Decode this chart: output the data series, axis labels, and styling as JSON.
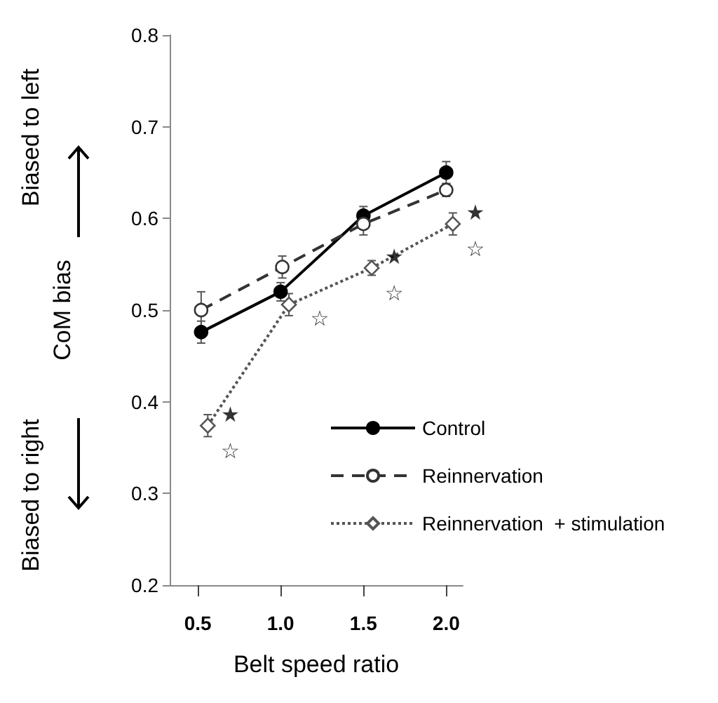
{
  "chart_data": {
    "type": "line",
    "xlabel": "Belt speed ratio",
    "ylabel": "CoM bias",
    "xlim": [
      0.33,
      2.1
    ],
    "xticks": [
      0.5,
      {
        "value": 1,
        "label": "1.0"
      },
      1.5,
      {
        "value": 2,
        "label": "2.0"
      }
    ],
    "ylim": [
      0.2,
      0.8
    ],
    "yticks": [
      0.2,
      0.3,
      0.4,
      0.5,
      0.6,
      0.7,
      0.8
    ],
    "grid": false,
    "legend": "bottom right",
    "series": [
      {
        "name": "Control",
        "color": "#000000",
        "marker": "circle",
        "line_style": "solid",
        "x": [
          0.52,
          1.0,
          1.5,
          2.0
        ],
        "values": [
          0.476,
          0.52,
          0.603,
          0.65
        ],
        "errors": [
          0.012,
          0.01,
          0.01,
          0.012
        ]
      },
      {
        "name": "Reinnervation",
        "color": "#333333",
        "marker": "circle",
        "line_style": "dashed",
        "x": [
          0.52,
          1.01,
          1.5,
          2.0
        ],
        "values": [
          0.5,
          0.547,
          0.594,
          0.631
        ],
        "errors": [
          0.02,
          0.012,
          0.012,
          0.007
        ]
      },
      {
        "name": "Reinnervation  + stimulation",
        "color": "#555555",
        "marker": "diamond",
        "line_style": "dotted",
        "x": [
          0.56,
          1.05,
          1.55,
          2.04
        ],
        "values": [
          0.374,
          0.506,
          0.546,
          0.594
        ],
        "errors": [
          0.012,
          0.012,
          0.008,
          0.012
        ]
      }
    ],
    "annotations": [
      "Biased to left",
      "Biased to right",
      {
        "text": "★",
        "x": 0.56,
        "y": 0.374
      },
      {
        "text": "☆",
        "x": 0.56,
        "y": 0.374
      },
      {
        "text": "☆",
        "x": 1.05,
        "y": 0.506
      },
      {
        "text": "★",
        "x": 1.55,
        "y": 0.546
      },
      {
        "text": "☆",
        "x": 1.55,
        "y": 0.546
      },
      {
        "text": "★",
        "x": 2.04,
        "y": 0.594
      },
      {
        "text": "☆",
        "x": 2.04,
        "y": 0.594
      }
    ]
  }
}
